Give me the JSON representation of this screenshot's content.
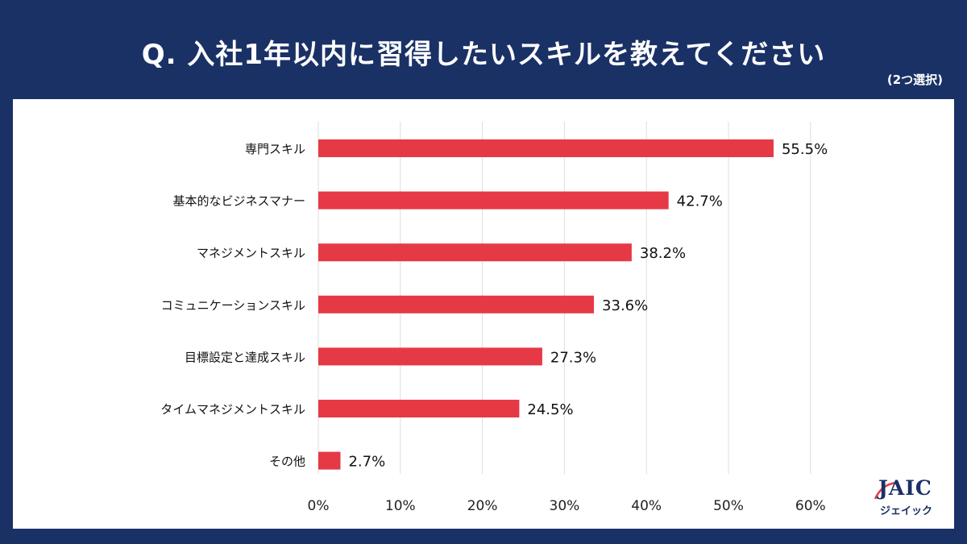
{
  "header": {
    "title": "Q. 入社1年以内に習得したいスキルを教えてください",
    "note": "(2つ選択)"
  },
  "logo": {
    "text": "JAIC",
    "subtext": "ジェイック"
  },
  "colors": {
    "background": "#1a3166",
    "bar": "#e63946",
    "grid": "#dddddd"
  },
  "chart_data": {
    "type": "bar",
    "orientation": "horizontal",
    "categories": [
      "専門スキル",
      "基本的なビジネスマナー",
      "マネジメントスキル",
      "コミュニケーションスキル",
      "目標設定と達成スキル",
      "タイムマネジメントスキル",
      "その他"
    ],
    "values": [
      55.5,
      42.7,
      38.2,
      33.6,
      27.3,
      24.5,
      2.7
    ],
    "value_labels": [
      "55.5%",
      "42.7%",
      "38.2%",
      "33.6%",
      "27.3%",
      "24.5%",
      "2.7%"
    ],
    "x_ticks": [
      0,
      10,
      20,
      30,
      40,
      50,
      60
    ],
    "x_tick_labels": [
      "0%",
      "10%",
      "20%",
      "30%",
      "40%",
      "50%",
      "60%"
    ],
    "xlim": [
      0,
      60
    ],
    "grid": true,
    "legend": "none"
  }
}
